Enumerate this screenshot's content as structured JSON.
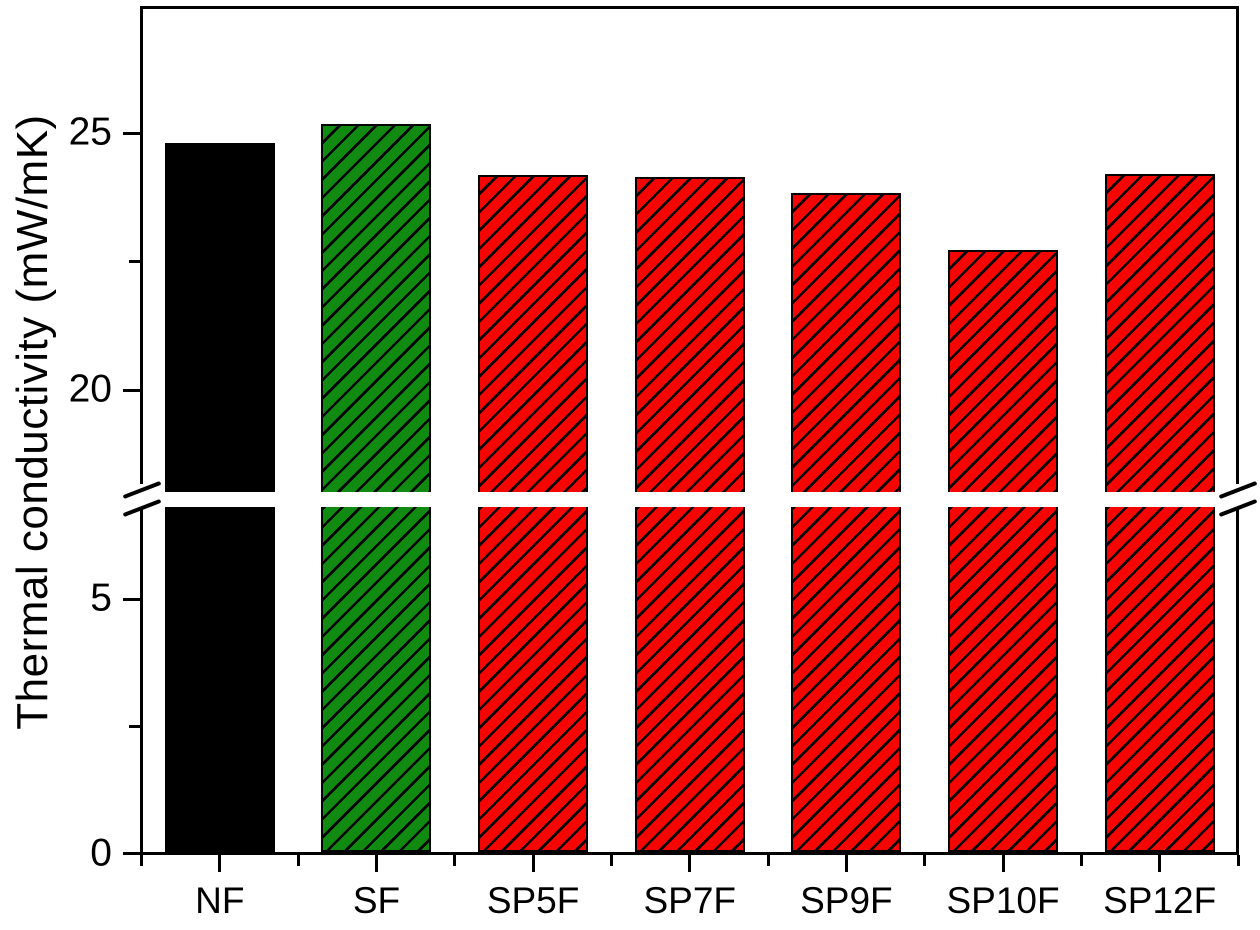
{
  "chart_data": {
    "type": "bar",
    "title": "",
    "xlabel": "",
    "ylabel": "Thermal conductivity (mW/mK)",
    "unit": "mW/mK",
    "categories": [
      "NF",
      "SF",
      "SP5F",
      "SP7F",
      "SP9F",
      "SP10F",
      "SP12F"
    ],
    "values": [
      24.8,
      25.17,
      24.18,
      24.15,
      23.84,
      22.72,
      24.21
    ],
    "bars": [
      {
        "category": "NF",
        "value": 24.8,
        "fill": "#000000",
        "hatch": false
      },
      {
        "category": "SF",
        "value": 25.17,
        "fill": "#108a10",
        "hatch": true
      },
      {
        "category": "SP5F",
        "value": 24.18,
        "fill": "#f80400",
        "hatch": true
      },
      {
        "category": "SP7F",
        "value": 24.15,
        "fill": "#f80400",
        "hatch": true
      },
      {
        "category": "SP9F",
        "value": 23.84,
        "fill": "#f80400",
        "hatch": true
      },
      {
        "category": "SP10F",
        "value": 22.72,
        "fill": "#f80400",
        "hatch": true
      },
      {
        "category": "SP12F",
        "value": 24.21,
        "fill": "#f80400",
        "hatch": true
      }
    ],
    "hatch_style": {
      "pattern": "diagonal-forward",
      "color": "#000000"
    },
    "edge_color": "#000000",
    "axis": {
      "y_major_ticks": [
        {
          "value": 0,
          "label": "0"
        },
        {
          "value": 5,
          "label": "5"
        },
        {
          "value": 20,
          "label": "20"
        },
        {
          "value": 25,
          "label": "25"
        }
      ],
      "y_minor_ticks": [
        2.5,
        22.5
      ],
      "y_break": {
        "lower_max": 6.8,
        "upper_min": 18.0
      },
      "ylim": [
        0,
        27.4
      ],
      "grid": false,
      "legend": false
    }
  }
}
